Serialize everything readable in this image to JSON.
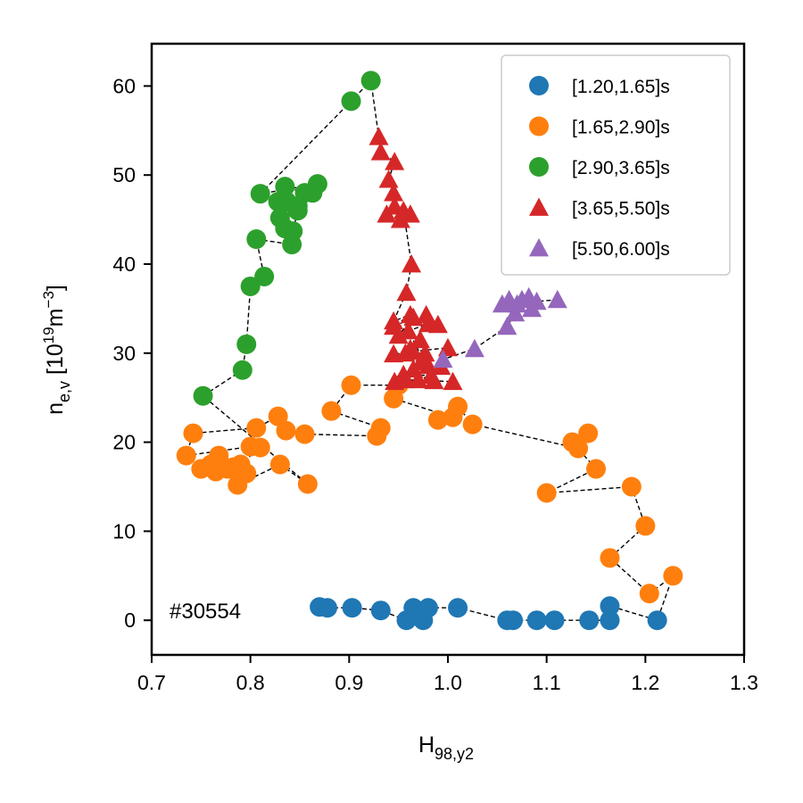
{
  "chart_data": {
    "type": "scatter",
    "xlabel_main": "H",
    "xlabel_sub": "98,y2",
    "ylabel_main": "n",
    "ylabel_sub": "e,v",
    "ylabel_unit_open": " [10",
    "ylabel_unit_exp1": "19",
    "ylabel_unit_mid": "m",
    "ylabel_unit_exp2": "−3",
    "ylabel_unit_close": "]",
    "annotation": "#30554",
    "xlim": [
      0.7,
      1.3
    ],
    "ylim": [
      -4,
      65
    ],
    "xticks": [
      "0.7",
      "0.8",
      "0.9",
      "1.0",
      "1.1",
      "1.2",
      "1.3"
    ],
    "yticks": [
      "0",
      "10",
      "20",
      "30",
      "40",
      "50",
      "60"
    ],
    "grid": false,
    "legend_position": "top-right",
    "connecting_line": "dashed black, follows time order",
    "series": [
      {
        "name": "[1.20,1.65]s",
        "marker": "circle",
        "color": "#1f77b4",
        "points": [
          [
            0.87,
            1.5
          ],
          [
            0.878,
            1.4
          ],
          [
            0.903,
            1.4
          ],
          [
            0.932,
            1.1
          ],
          [
            0.958,
            0.0
          ],
          [
            0.975,
            0.0
          ],
          [
            0.965,
            1.4
          ],
          [
            0.98,
            1.4
          ],
          [
            1.01,
            1.4
          ],
          [
            1.06,
            0.0
          ],
          [
            1.066,
            0.0
          ],
          [
            1.09,
            0.0
          ],
          [
            1.108,
            0.0
          ],
          [
            1.143,
            0.0
          ],
          [
            1.164,
            0.0
          ],
          [
            1.164,
            1.6
          ],
          [
            1.212,
            0.0
          ]
        ]
      },
      {
        "name": "[1.65,2.90]s",
        "marker": "circle",
        "color": "#ff7f0e",
        "points": [
          [
            1.228,
            5.0
          ],
          [
            1.204,
            3.0
          ],
          [
            1.164,
            7.0
          ],
          [
            1.2,
            10.6
          ],
          [
            1.186,
            15.0
          ],
          [
            1.1,
            14.3
          ],
          [
            1.15,
            17.0
          ],
          [
            1.126,
            20.0
          ],
          [
            1.142,
            21.0
          ],
          [
            1.132,
            19.3
          ],
          [
            1.025,
            22.0
          ],
          [
            1.01,
            24.0
          ],
          [
            0.99,
            22.5
          ],
          [
            1.005,
            22.8
          ],
          [
            0.945,
            24.9
          ],
          [
            0.95,
            26.4
          ],
          [
            0.902,
            26.4
          ],
          [
            0.882,
            23.5
          ],
          [
            0.932,
            21.6
          ],
          [
            0.928,
            20.7
          ],
          [
            0.855,
            20.9
          ],
          [
            0.836,
            21.3
          ],
          [
            0.828,
            22.9
          ],
          [
            0.806,
            21.6
          ],
          [
            0.742,
            21.0
          ],
          [
            0.735,
            18.5
          ],
          [
            0.8,
            19.5
          ],
          [
            0.81,
            19.4
          ],
          [
            0.79,
            17.5
          ],
          [
            0.768,
            18.5
          ],
          [
            0.75,
            17.0
          ],
          [
            0.76,
            17.5
          ],
          [
            0.783,
            17.2
          ],
          [
            0.765,
            16.7
          ],
          [
            0.777,
            17.0
          ],
          [
            0.796,
            16.5
          ],
          [
            0.787,
            15.2
          ],
          [
            0.83,
            17.5
          ],
          [
            0.858,
            15.3
          ]
        ]
      },
      {
        "name": "[2.90,3.65]s",
        "marker": "circle",
        "color": "#2ca02c",
        "points": [
          [
            0.752,
            25.2
          ],
          [
            0.792,
            28.1
          ],
          [
            0.796,
            31.0
          ],
          [
            0.8,
            37.5
          ],
          [
            0.814,
            38.6
          ],
          [
            0.806,
            42.8
          ],
          [
            0.842,
            42.2
          ],
          [
            0.835,
            44.0
          ],
          [
            0.843,
            43.7
          ],
          [
            0.848,
            46.0
          ],
          [
            0.83,
            45.2
          ],
          [
            0.837,
            47.0
          ],
          [
            0.848,
            46.5
          ],
          [
            0.828,
            47.0
          ],
          [
            0.835,
            48.7
          ],
          [
            0.855,
            48.0
          ],
          [
            0.863,
            48.0
          ],
          [
            0.868,
            49.0
          ],
          [
            0.81,
            47.9
          ],
          [
            0.902,
            58.3
          ],
          [
            0.922,
            60.6
          ]
        ]
      },
      {
        "name": "[3.65,5.50]s",
        "marker": "triangle",
        "color": "#d62728",
        "points": [
          [
            0.93,
            54.3
          ],
          [
            0.932,
            52.6
          ],
          [
            0.946,
            51.5
          ],
          [
            0.94,
            49.5
          ],
          [
            0.945,
            48.0
          ],
          [
            0.946,
            46.5
          ],
          [
            0.938,
            45.6
          ],
          [
            0.952,
            45.0
          ],
          [
            0.962,
            45.6
          ],
          [
            0.955,
            46.0
          ],
          [
            0.963,
            40.0
          ],
          [
            0.958,
            36.8
          ],
          [
            0.945,
            33.6
          ],
          [
            0.962,
            34.3
          ],
          [
            0.945,
            33.0
          ],
          [
            0.965,
            34.0
          ],
          [
            0.95,
            32.0
          ],
          [
            0.972,
            31.5
          ],
          [
            0.962,
            30.5
          ],
          [
            0.957,
            30.0
          ],
          [
            0.945,
            29.9
          ],
          [
            0.977,
            30.0
          ],
          [
            0.973,
            29.0
          ],
          [
            0.965,
            28.2
          ],
          [
            0.955,
            27.6
          ],
          [
            0.983,
            27.5
          ],
          [
            0.97,
            27.0
          ],
          [
            0.946,
            26.8
          ],
          [
            0.986,
            26.9
          ],
          [
            0.96,
            32.5
          ],
          [
            0.98,
            33.3
          ],
          [
            0.99,
            33.2
          ],
          [
            0.978,
            34.3
          ],
          [
            0.965,
            30.2
          ],
          [
            1.0,
            30.6
          ],
          [
            0.993,
            28.5
          ],
          [
            0.98,
            28.6
          ],
          [
            0.957,
            27.0
          ],
          [
            1.005,
            26.8
          ]
        ]
      },
      {
        "name": "[5.50,6.00]s",
        "marker": "triangle",
        "color": "#9467bd",
        "points": [
          [
            0.995,
            29.3
          ],
          [
            1.027,
            30.5
          ],
          [
            1.06,
            33.0
          ],
          [
            1.068,
            34.5
          ],
          [
            1.055,
            35.5
          ],
          [
            1.062,
            36.0
          ],
          [
            1.07,
            35.5
          ],
          [
            1.085,
            35.0
          ],
          [
            1.075,
            36.0
          ],
          [
            1.082,
            36.3
          ],
          [
            1.09,
            35.8
          ],
          [
            1.111,
            36.0
          ]
        ]
      }
    ]
  }
}
